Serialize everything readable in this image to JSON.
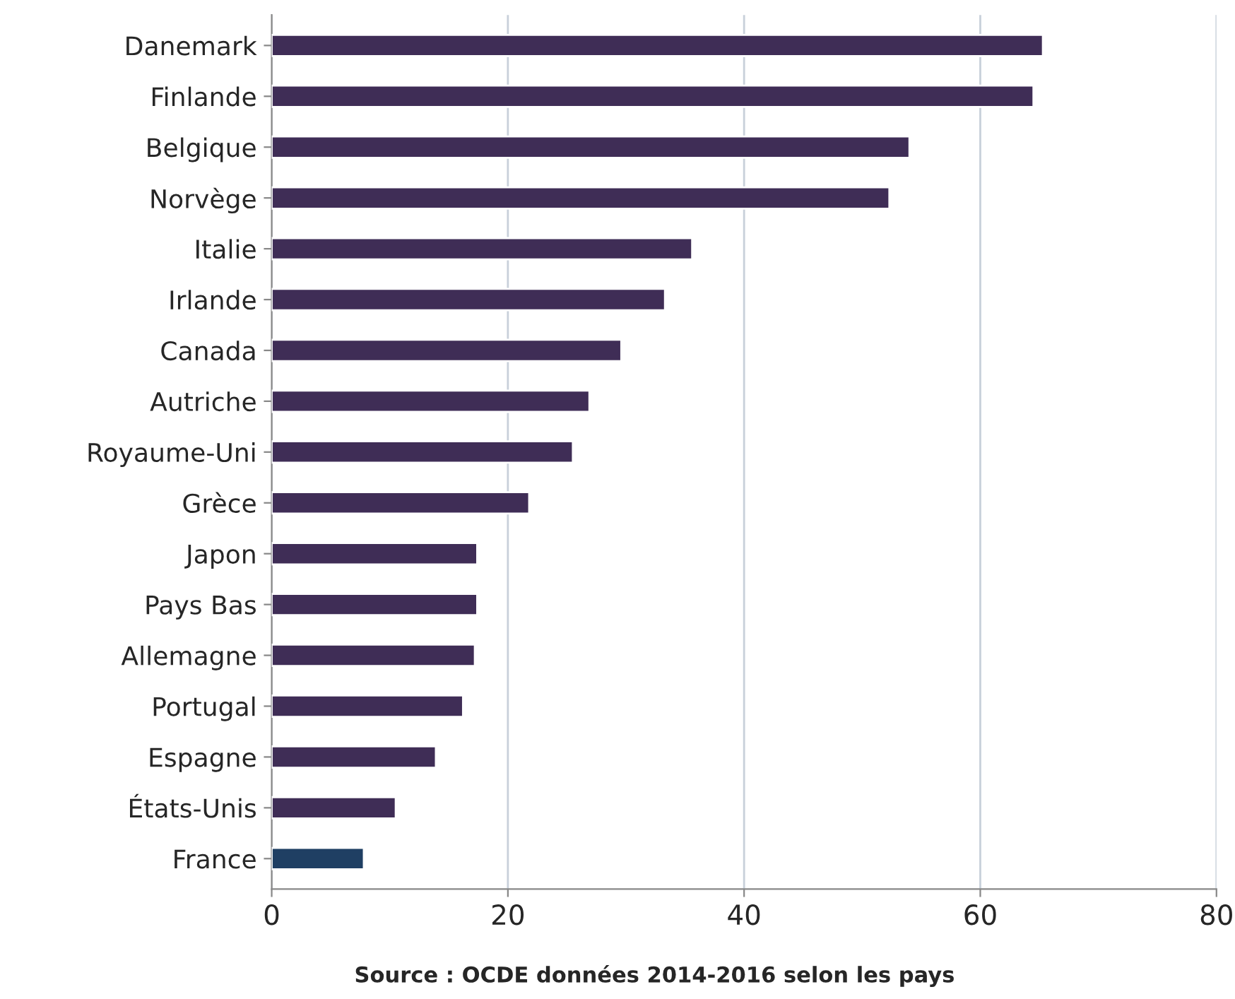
{
  "chart_data": {
    "type": "bar",
    "orientation": "horizontal",
    "categories": [
      "Danemark",
      "Finlande",
      "Belgique",
      "Norvège",
      "Italie",
      "Irlande",
      "Canada",
      "Autriche",
      "Royaume-Uni",
      "Grèce",
      "Japon",
      "Pays Bas",
      "Allemagne",
      "Portugal",
      "Espagne",
      "États-Unis",
      "France"
    ],
    "values": [
      65.3,
      64.5,
      54,
      52.3,
      35.6,
      33.3,
      29.6,
      26.9,
      25.5,
      21.8,
      17.4,
      17.4,
      17.2,
      16.2,
      13.9,
      10.5,
      7.8
    ],
    "colors": [
      "#3f2d56",
      "#3f2d56",
      "#3f2d56",
      "#3f2d56",
      "#3f2d56",
      "#3f2d56",
      "#3f2d56",
      "#3f2d56",
      "#3f2d56",
      "#3f2d56",
      "#3f2d56",
      "#3f2d56",
      "#3f2d56",
      "#3f2d56",
      "#3f2d56",
      "#3f2d56",
      "#1f3f63"
    ],
    "xlim": [
      0,
      80
    ],
    "xticks": [
      0,
      20,
      40,
      60,
      80
    ],
    "grid": "x",
    "annotations": [
      "Source : OCDE données 2014-2016 selon les pays"
    ]
  }
}
